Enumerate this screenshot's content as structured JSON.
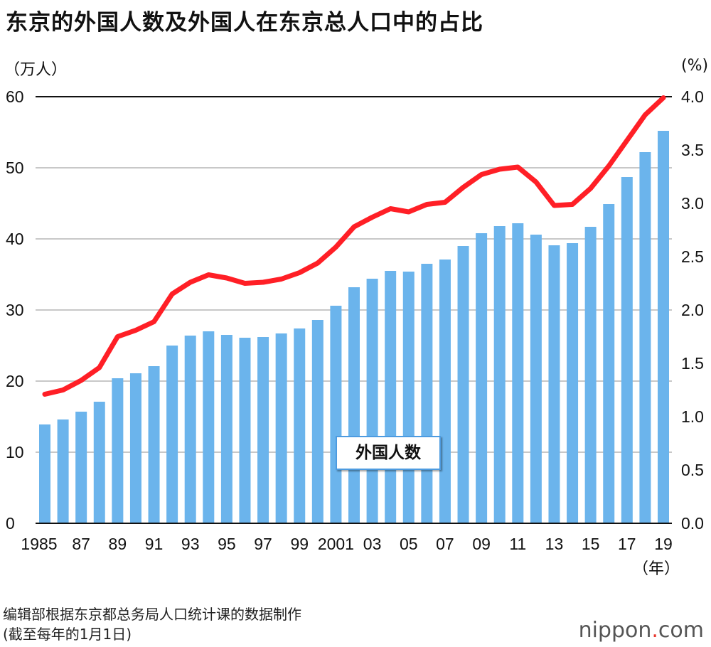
{
  "title": "东京的外国人数及外国人在东京总人口中的占比",
  "left_unit": "（万人）",
  "right_unit": "(%)",
  "year_unit": "（年）",
  "legend_label": "外国人数",
  "source_line1": "编辑部根据东京都总务局人口统计课的数据制作",
  "source_line2": "(截至每年的1月1日)",
  "logo": {
    "name": "nippon",
    "dot": ".",
    "suffix": "com"
  },
  "chart_data": {
    "type": "bar+line",
    "title": "东京的外国人数及外国人在东京总人口中的占比",
    "x": [
      1985,
      1986,
      1987,
      1988,
      1989,
      1990,
      1991,
      1992,
      1993,
      1994,
      1995,
      1996,
      1997,
      1998,
      1999,
      2000,
      2001,
      2002,
      2003,
      2004,
      2005,
      2006,
      2007,
      2008,
      2009,
      2010,
      2011,
      2012,
      2013,
      2014,
      2015,
      2016,
      2017,
      2018,
      2019
    ],
    "x_tick_labels": [
      "1985",
      "87",
      "89",
      "91",
      "93",
      "95",
      "97",
      "99",
      "2001",
      "03",
      "05",
      "07",
      "09",
      "11",
      "13",
      "15",
      "17",
      "19"
    ],
    "y_left": {
      "label": "（万人）",
      "range": [
        0,
        60
      ],
      "ticks": [
        "0",
        "10",
        "20",
        "30",
        "40",
        "50",
        "60"
      ]
    },
    "y_right": {
      "label": "(%)",
      "range": [
        0,
        4.0
      ],
      "ticks": [
        "0.0",
        "0.5",
        "1.0",
        "1.5",
        "2.0",
        "2.5",
        "3.0",
        "3.5",
        "4.0"
      ]
    },
    "grid": true,
    "series": [
      {
        "name": "外国人数",
        "type": "bar",
        "axis": "left",
        "color": "#6bb4ec",
        "values": [
          13.9,
          14.6,
          15.7,
          17.1,
          20.4,
          21.1,
          22.1,
          25.0,
          26.4,
          27.0,
          26.5,
          26.1,
          26.2,
          26.7,
          27.4,
          28.6,
          30.6,
          33.2,
          34.4,
          35.5,
          35.4,
          36.5,
          37.1,
          39.0,
          40.8,
          41.8,
          42.2,
          40.6,
          39.1,
          39.4,
          41.7,
          44.9,
          48.7,
          52.2,
          55.2
        ]
      },
      {
        "type": "line",
        "axis": "right",
        "color": "#ff1f26",
        "values": [
          1.21,
          1.25,
          1.34,
          1.46,
          1.75,
          1.81,
          1.89,
          2.15,
          2.26,
          2.33,
          2.3,
          2.25,
          2.26,
          2.29,
          2.35,
          2.44,
          2.59,
          2.78,
          2.87,
          2.95,
          2.92,
          2.99,
          3.01,
          3.15,
          3.27,
          3.32,
          3.34,
          3.2,
          2.98,
          2.99,
          3.14,
          3.35,
          3.59,
          3.83,
          3.99
        ]
      }
    ]
  }
}
